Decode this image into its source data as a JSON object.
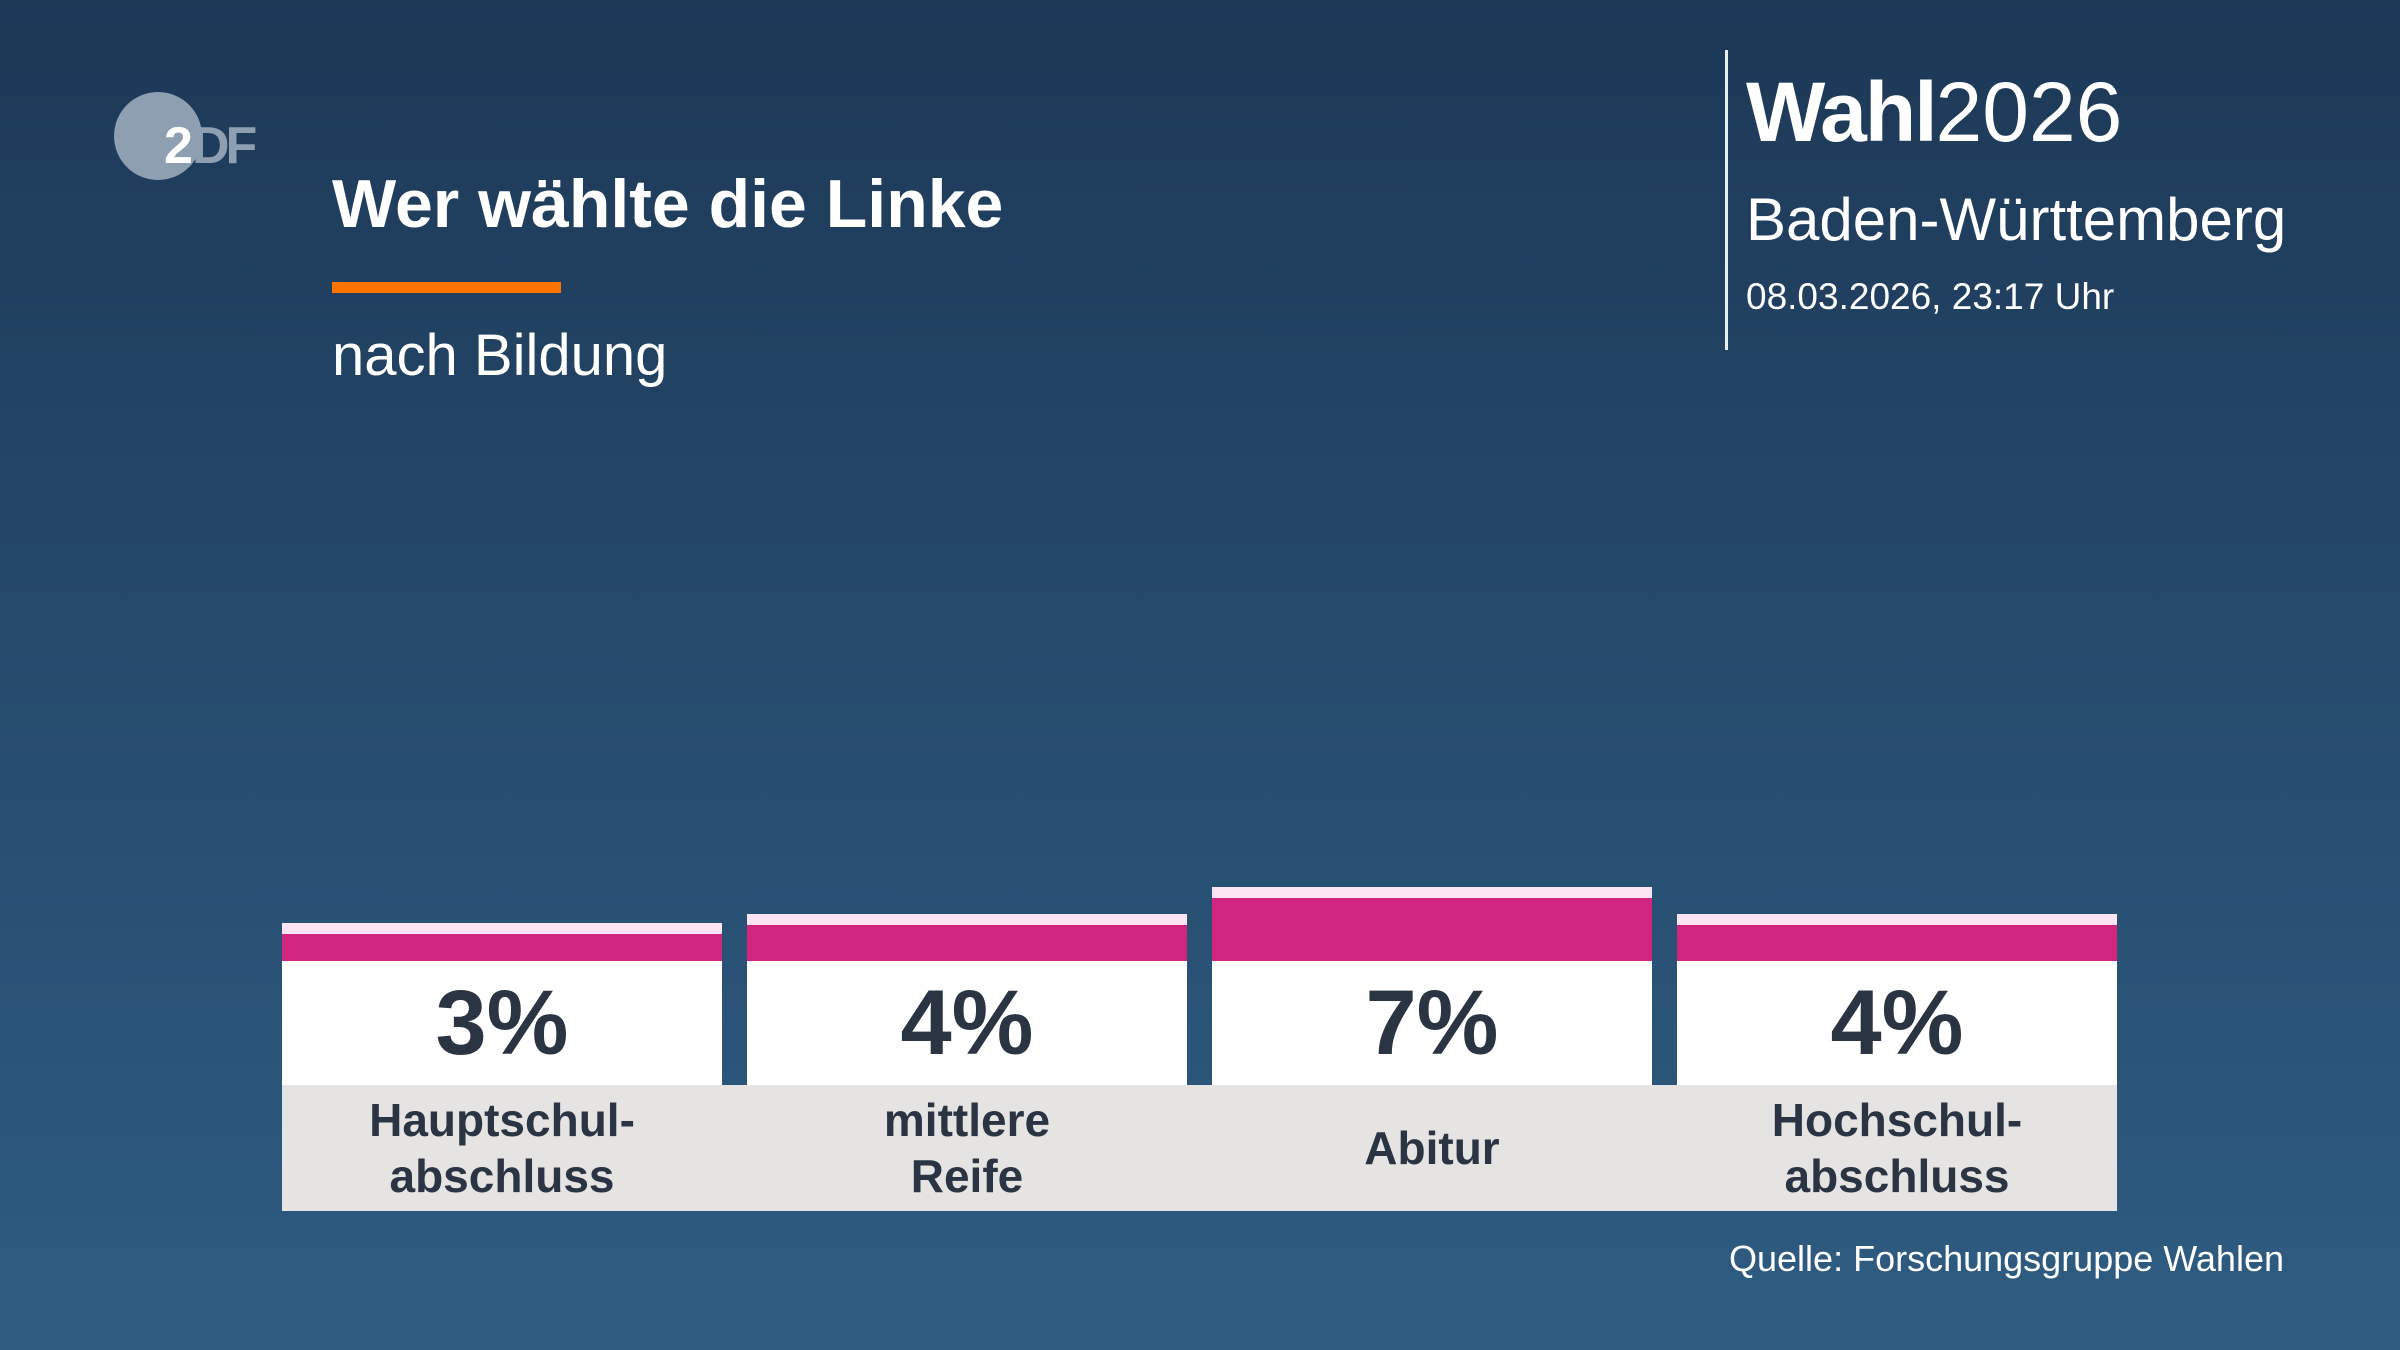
{
  "logo": {
    "text": "ZDF"
  },
  "header": {
    "title": "Wer wählte die Linke",
    "subtitle": "nach Bildung",
    "brand_bold": "Wahl",
    "brand_year": "2026",
    "region": "Baden-Württemberg",
    "date": "08.03.2026, 23:17 Uhr"
  },
  "source": "Quelle: Forschungsgruppe Wahlen",
  "colors": {
    "bar": "#d02680",
    "accent": "#ff7300",
    "background": "#25496b"
  },
  "chart_data": {
    "type": "bar",
    "title": "Wer wählte die Linke",
    "subtitle": "nach Bildung",
    "categories": [
      "Hauptschul-\nabschluss",
      "mittlere\nReife",
      "Abitur",
      "Hochschul-\nabschluss"
    ],
    "values": [
      3,
      4,
      7,
      4
    ],
    "value_labels": [
      "3%",
      "4%",
      "7%",
      "4%"
    ],
    "unit": "%",
    "grid": false
  }
}
